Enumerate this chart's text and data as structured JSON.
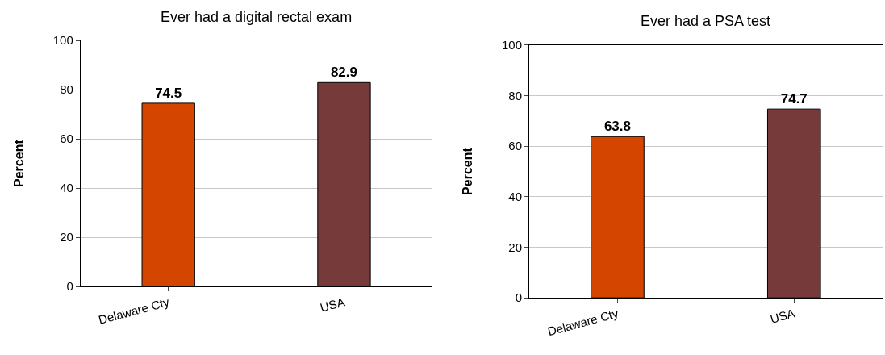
{
  "chart_data": [
    {
      "type": "bar",
      "title": "Ever had a digital rectal exam",
      "ylabel": "Percent",
      "categories": [
        "Delaware Cty",
        "USA"
      ],
      "values": [
        74.5,
        82.9
      ],
      "colors": [
        "#d44500",
        "#773a3a"
      ],
      "ylim": [
        0,
        100
      ],
      "yticks": [
        0,
        20,
        40,
        60,
        80,
        100
      ],
      "grid": "y",
      "data_labels": true
    },
    {
      "type": "bar",
      "title": "Ever had a PSA test",
      "ylabel": "Percent",
      "categories": [
        "Delaware Cty",
        "USA"
      ],
      "values": [
        63.8,
        74.7
      ],
      "colors": [
        "#d44500",
        "#773a3a"
      ],
      "ylim": [
        0,
        100
      ],
      "yticks": [
        0,
        20,
        40,
        60,
        80,
        100
      ],
      "grid": "y",
      "data_labels": true
    }
  ]
}
